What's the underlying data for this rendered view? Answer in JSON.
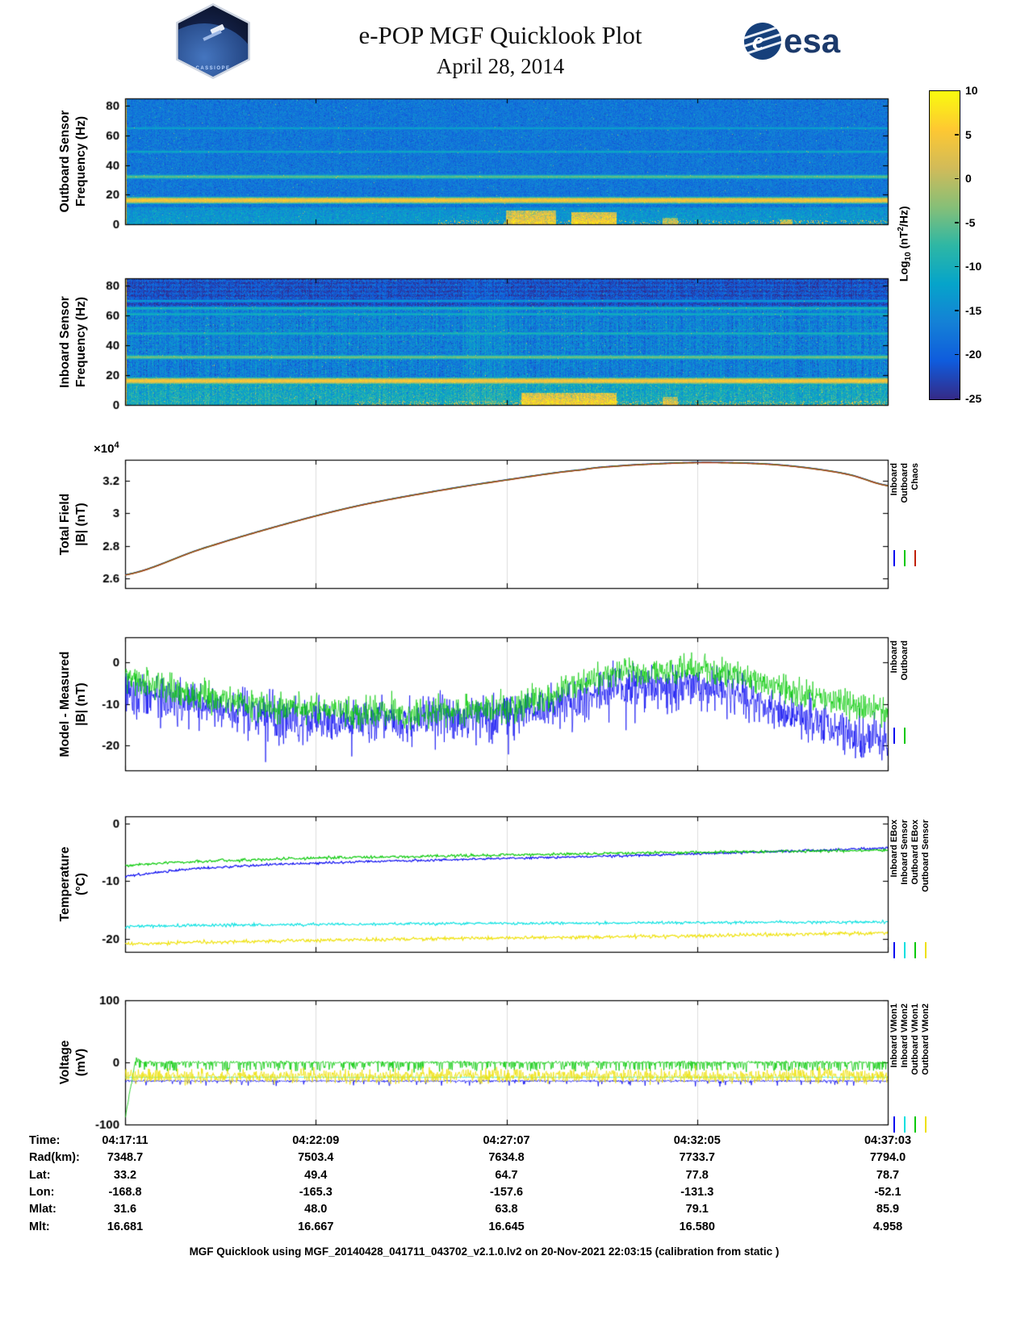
{
  "header": {
    "title": "e-POP MGF Quicklook Plot",
    "subtitle": "April 28, 2014",
    "cassiope_label": "CASSIOPE",
    "esa_text": "esa"
  },
  "colorbar": {
    "label": {
      "prefix": "Log",
      "sub": "10",
      "mid": " (nT",
      "sup": "2",
      "suf": "/Hz)"
    },
    "ticks": [
      10,
      5,
      0,
      -5,
      -10,
      -15,
      -20,
      -25
    ],
    "vmin": -25,
    "vmax": 10,
    "colormap": [
      "#352a87",
      "#0f5cdd",
      "#1481d6",
      "#06a4ca",
      "#2eb7a4",
      "#87bf77",
      "#d1bb59",
      "#fec832",
      "#f9fb0e"
    ]
  },
  "time_axis": {
    "fractions": [
      0,
      0.25,
      0.5,
      0.75,
      1
    ],
    "labels": [
      "04:17:11",
      "04:22:09",
      "04:27:07",
      "04:32:05",
      "04:37:03"
    ]
  },
  "chart_data": [
    {
      "id": "outboard-spectrogram",
      "type": "heatmap",
      "ylabel": [
        "Outboard Sensor",
        "Frequency (Hz)"
      ],
      "ylim": [
        0,
        85
      ],
      "yticks": [
        0,
        20,
        40,
        60,
        80
      ],
      "ytick_labels": [
        "0",
        "20",
        "40",
        "60",
        "80"
      ],
      "x_range": [
        "04:17:11",
        "04:37:03"
      ],
      "vmin": -25,
      "vmax": 10,
      "background": -17.5,
      "background_noise": 1.8,
      "vertical_striping": 0.5,
      "salt": 0.004,
      "low_band": {
        "f_max": 11,
        "value": -14.5,
        "noise": 2.2
      },
      "harmonic_lines": [
        {
          "f": 16,
          "value": 5,
          "width": 1.4,
          "noise": 1.2
        },
        {
          "f": 32,
          "value": -5,
          "width": 1.1,
          "noise": 0.8
        },
        {
          "f": 49,
          "value": -11,
          "width": 0.9,
          "noise": 0.8
        },
        {
          "f": 65,
          "value": -12,
          "width": 0.9,
          "noise": 0.8
        }
      ],
      "bursts": [
        {
          "t0": 0.5,
          "t1": 0.565,
          "f_max": 9,
          "value": 1
        },
        {
          "t0": 0.585,
          "t1": 0.645,
          "f_max": 8,
          "value": 2
        },
        {
          "t0": 0.705,
          "t1": 0.725,
          "f_max": 4,
          "value": -2
        },
        {
          "t0": 0.86,
          "t1": 0.875,
          "f_max": 3,
          "value": -3
        }
      ],
      "bottom_speckle": {
        "t0": 0.4,
        "t1": 1.0,
        "f_max": 2.2,
        "value": 1,
        "density": 0.12
      },
      "startup_transient": true
    },
    {
      "id": "inboard-spectrogram",
      "type": "heatmap",
      "ylabel": [
        "Inboard Sensor",
        "Frequency (Hz)"
      ],
      "ylim": [
        0,
        85
      ],
      "yticks": [
        0,
        20,
        40,
        60,
        80
      ],
      "ytick_labels": [
        "0",
        "20",
        "40",
        "60",
        "80"
      ],
      "x_range": [
        "04:17:11",
        "04:37:03"
      ],
      "vmin": -25,
      "vmax": 10,
      "background": -16.5,
      "background_noise": 2.4,
      "vertical_striping": 2.0,
      "salt": 0.006,
      "horizontal_texture": true,
      "top_dark_band": {
        "f_min": 66,
        "value": -21.5,
        "noise": 2.0
      },
      "low_band": {
        "f_max": 14,
        "value": -11.5,
        "noise": 2.8
      },
      "harmonic_lines": [
        {
          "f": 16,
          "value": 5,
          "width": 1.4,
          "noise": 1.2
        },
        {
          "f": 32,
          "value": -4,
          "width": 1.1,
          "noise": 0.8
        },
        {
          "f": 48,
          "value": -9,
          "width": 0.9,
          "noise": 0.8
        },
        {
          "f": 61,
          "value": -10,
          "width": 0.9,
          "noise": 0.8
        },
        {
          "f": 65,
          "value": -9,
          "width": 0.9,
          "noise": 0.8
        },
        {
          "f": 70,
          "value": -13,
          "width": 0.8,
          "noise": 0.8
        }
      ],
      "mid_bright": {
        "t0": 0.44,
        "t1": 0.52,
        "boost": 2.5
      },
      "bursts": [
        {
          "t0": 0.52,
          "t1": 0.645,
          "f_max": 8,
          "value": 2
        },
        {
          "t0": 0.705,
          "t1": 0.725,
          "f_max": 5,
          "value": -1
        }
      ],
      "bottom_speckle": {
        "t0": 0.3,
        "t1": 1.0,
        "f_max": 2.2,
        "value": 1,
        "density": 0.15
      },
      "startup_transient": true
    },
    {
      "id": "total-field",
      "type": "line",
      "ylabel": [
        "Total Field",
        "|B| (nT)"
      ],
      "exp": {
        "prefix": "×10",
        "sup": "4"
      },
      "ylim": [
        2.54,
        3.33
      ],
      "yticks": [
        2.6,
        2.8,
        3,
        3.2
      ],
      "ytick_labels": [
        "2.6",
        "2.8",
        "3",
        "3.2"
      ],
      "x_range": [
        "04:17:11",
        "04:37:03"
      ],
      "x": [
        0,
        0.1,
        0.2,
        0.3,
        0.4,
        0.5,
        0.6,
        0.65,
        0.7,
        0.75,
        0.8,
        0.85,
        0.9,
        0.95,
        1
      ],
      "base_values_1e4": [
        2.62,
        2.78,
        2.92,
        3.04,
        3.13,
        3.205,
        3.268,
        3.292,
        3.305,
        3.312,
        3.31,
        3.3,
        3.276,
        3.237,
        3.17
      ],
      "series": [
        {
          "name": "Inboard",
          "color": "#0000F0",
          "offset": 0.002
        },
        {
          "name": "Outboard",
          "color": "#00C800",
          "offset": 0.001
        },
        {
          "name": "Chaos",
          "color": "#B03A10",
          "offset": 0
        }
      ],
      "legend": [
        {
          "label": "Inboard",
          "color": "#0000F0"
        },
        {
          "label": "Outboard",
          "color": "#00C800"
        },
        {
          "label": "Chaos",
          "color": "#C02000"
        }
      ]
    },
    {
      "id": "model-minus-measured",
      "type": "noisy-line",
      "ylabel": [
        "Model - Measured",
        "|B| (nT)"
      ],
      "ylim": [
        -26,
        6
      ],
      "yticks": [
        0,
        -10,
        -20
      ],
      "ytick_labels": [
        "0",
        "-10",
        "-20"
      ],
      "x_range": [
        "04:17:11",
        "04:37:03"
      ],
      "x": [
        0,
        0.05,
        0.1,
        0.15,
        0.2,
        0.25,
        0.3,
        0.35,
        0.4,
        0.45,
        0.5,
        0.55,
        0.6,
        0.63,
        0.66,
        0.7,
        0.73,
        0.76,
        0.8,
        0.85,
        0.9,
        0.95,
        1
      ],
      "series": [
        {
          "name": "Inboard",
          "color": "#0000F0",
          "noise": 2.6,
          "spike_rate": 0.03,
          "spike_amp": -6,
          "mean": [
            -7,
            -9,
            -10.5,
            -12,
            -13,
            -13.5,
            -14,
            -14,
            -13.5,
            -13,
            -12.5,
            -11,
            -8,
            -6.5,
            -6,
            -7,
            -6,
            -5.5,
            -8,
            -11,
            -14,
            -17,
            -19.5
          ]
        },
        {
          "name": "Outboard",
          "color": "#00C800",
          "noise": 1.7,
          "spike_rate": 0.02,
          "spike_amp": 3,
          "mean": [
            -4,
            -6.5,
            -8,
            -9.5,
            -11,
            -11.5,
            -12,
            -12.5,
            -12,
            -11.5,
            -11,
            -9,
            -5,
            -3,
            -2,
            -3,
            -2,
            -1.5,
            -3,
            -6,
            -8,
            -10,
            -12
          ]
        }
      ],
      "legend": [
        {
          "label": "Inboard",
          "color": "#0000F0"
        },
        {
          "label": "Outboard",
          "color": "#00C800"
        }
      ]
    },
    {
      "id": "temperature",
      "type": "noisy-line",
      "ylabel": [
        "Temperature",
        "(°C)"
      ],
      "ylim": [
        -22.3,
        1.2
      ],
      "yticks": [
        0,
        -10,
        -20
      ],
      "ytick_labels": [
        "0",
        "-10",
        "-20"
      ],
      "x_range": [
        "04:17:11",
        "04:37:03"
      ],
      "x": [
        0,
        0.05,
        0.1,
        0.2,
        0.3,
        0.4,
        0.5,
        0.6,
        0.7,
        0.8,
        0.9,
        1
      ],
      "series": [
        {
          "name": "Inboard EBox",
          "color": "#0000F0",
          "noise": 0.1,
          "mean": [
            -9.2,
            -8.4,
            -7.8,
            -7.1,
            -6.7,
            -6.4,
            -6.1,
            -5.8,
            -5.5,
            -5.1,
            -4.7,
            -4.3
          ]
        },
        {
          "name": "Inboard Sensor",
          "color": "#00E0E0",
          "noise": 0.12,
          "mean": [
            -17.9,
            -17.8,
            -17.7,
            -17.6,
            -17.5,
            -17.4,
            -17.35,
            -17.3,
            -17.25,
            -17.2,
            -17.15,
            -17.1
          ]
        },
        {
          "name": "Outboard EBox",
          "color": "#00C800",
          "noise": 0.12,
          "mean": [
            -7.3,
            -6.9,
            -6.6,
            -6.2,
            -5.9,
            -5.7,
            -5.5,
            -5.3,
            -5.1,
            -4.95,
            -4.8,
            -4.7
          ]
        },
        {
          "name": "Outboard Sensor",
          "color": "#EEE000",
          "noise": 0.15,
          "mean": [
            -21.0,
            -20.8,
            -20.6,
            -20.4,
            -20.2,
            -20.0,
            -19.9,
            -19.75,
            -19.6,
            -19.4,
            -19.2,
            -19.0
          ]
        }
      ],
      "legend": [
        {
          "label": "Inboard EBox",
          "color": "#0000F0"
        },
        {
          "label": "Inboard Sensor",
          "color": "#00E0E0"
        },
        {
          "label": "Outboard EBox",
          "color": "#00C800"
        },
        {
          "label": "Outboard Sensor",
          "color": "#EEE000"
        }
      ]
    },
    {
      "id": "voltage",
      "type": "noisy-line",
      "ylabel": [
        "Voltage",
        "(mV)"
      ],
      "ylim": [
        -100,
        100
      ],
      "yticks": [
        100,
        0,
        -100
      ],
      "ytick_labels": [
        "100",
        "0",
        "-100"
      ],
      "x_range": [
        "04:17:11",
        "04:37:03"
      ],
      "x": [
        0,
        1
      ],
      "series": [
        {
          "name": "Inboard VMon1",
          "color": "#0000F0",
          "noise": 0.8,
          "spike_rate": 0.05,
          "spike_amp": -8,
          "mean": [
            -30,
            -30
          ]
        },
        {
          "name": "Inboard VMon2",
          "color": "#00E0E0",
          "noise": 0.4,
          "mean": [
            -24,
            -24
          ]
        },
        {
          "name": "Outboard VMon1",
          "color": "#00C800",
          "noise": 1.0,
          "spike_rate": 0.25,
          "spike_amp": -14,
          "transient": {
            "start": -90,
            "duration": 0.013,
            "overshoot": 9
          },
          "mean": [
            0,
            0
          ]
        },
        {
          "name": "Outboard VMon2",
          "color": "#EEE000",
          "noise": 2.5,
          "spike_rate": 0.5,
          "spike_amp": -12,
          "spike_up_rate": 0.3,
          "spike_up_amp": 9,
          "mean": [
            -20,
            -20
          ]
        }
      ],
      "legend": [
        {
          "label": "Inboard VMon1",
          "color": "#0000F0"
        },
        {
          "label": "Inboard VMon2",
          "color": "#00E0E0"
        },
        {
          "label": "Outboard VMon1",
          "color": "#00C800"
        },
        {
          "label": "Outboard VMon2",
          "color": "#EEE000"
        }
      ]
    }
  ],
  "table": {
    "rows": [
      {
        "label": "Time:",
        "values": [
          "04:17:11",
          "04:22:09",
          "04:27:07",
          "04:32:05",
          "04:37:03"
        ]
      },
      {
        "label": "Rad(km):",
        "values": [
          "7348.7",
          "7503.4",
          "7634.8",
          "7733.7",
          "7794.0"
        ]
      },
      {
        "label": "Lat:",
        "values": [
          "33.2",
          "49.4",
          "64.7",
          "77.8",
          "78.7"
        ]
      },
      {
        "label": "Lon:",
        "values": [
          "-168.8",
          "-165.3",
          "-157.6",
          "-131.3",
          "-52.1"
        ]
      },
      {
        "label": "Mlat:",
        "values": [
          "31.6",
          "48.0",
          "63.8",
          "79.1",
          "85.9"
        ]
      },
      {
        "label": "Mlt:",
        "values": [
          "16.681",
          "16.667",
          "16.645",
          "16.580",
          "4.958"
        ]
      }
    ]
  },
  "footer": "MGF Quicklook using MGF_20140428_041711_043702_v2.1.0.lv2 on 20-Nov-2021 22:03:15 (calibration from static )"
}
